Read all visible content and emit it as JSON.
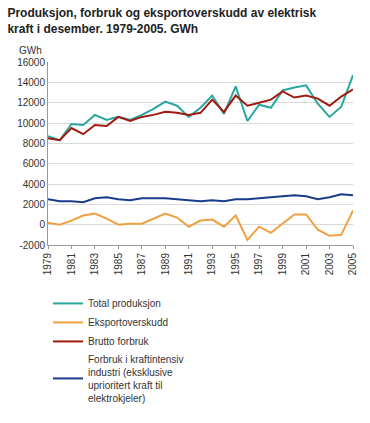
{
  "chart_data": {
    "type": "line",
    "title": "Produksjon, forbruk og eksportoverskudd av elektrisk kraft i desember. 1979-2005. GWh",
    "y_label": "GWh",
    "x": [
      1979,
      1980,
      1981,
      1982,
      1983,
      1984,
      1985,
      1986,
      1987,
      1988,
      1989,
      1990,
      1991,
      1992,
      1993,
      1994,
      1995,
      1996,
      1997,
      1998,
      1999,
      2000,
      2001,
      2002,
      2003,
      2004,
      2005
    ],
    "series": [
      {
        "name": "Total produksjon",
        "color": "#2aa6a0",
        "values": [
          8700,
          8300,
          9900,
          9800,
          10800,
          10300,
          10600,
          10300,
          10800,
          11400,
          12100,
          11700,
          10600,
          11500,
          12700,
          10900,
          13600,
          10200,
          11800,
          11500,
          13200,
          13500,
          13700,
          11900,
          10600,
          11600,
          14700
        ]
      },
      {
        "name": "Eksportoverskudd",
        "color": "#f0a040",
        "values": [
          200,
          0,
          400,
          900,
          1100,
          600,
          0,
          100,
          100,
          600,
          1100,
          700,
          -200,
          400,
          500,
          -200,
          900,
          -1500,
          -200,
          -800,
          100,
          1000,
          1000,
          -500,
          -1100,
          -1000,
          1400
        ]
      },
      {
        "name": "Brutto forbruk",
        "color": "#a01a10",
        "values": [
          8500,
          8300,
          9500,
          8900,
          9800,
          9700,
          10600,
          10200,
          10600,
          10800,
          11100,
          11000,
          10800,
          11000,
          12300,
          11100,
          12700,
          11700,
          12000,
          12300,
          13100,
          12500,
          12700,
          12400,
          11700,
          12600,
          13300
        ]
      },
      {
        "name": "Forbruk i kraftintensiv industri (eksklusive uprioritert kraft til elektrokjeler)",
        "color": "#1a3c8c",
        "values": [
          2500,
          2300,
          2300,
          2200,
          2600,
          2700,
          2500,
          2400,
          2600,
          2600,
          2600,
          2500,
          2400,
          2300,
          2400,
          2300,
          2500,
          2500,
          2600,
          2700,
          2800,
          2900,
          2800,
          2500,
          2700,
          3000,
          2900
        ]
      }
    ],
    "xlim": [
      1979,
      2005
    ],
    "xticks": [
      1979,
      1981,
      1983,
      1985,
      1987,
      1989,
      1991,
      1993,
      1995,
      1997,
      1999,
      2001,
      2003,
      2005
    ],
    "ylim": [
      -2000,
      16000
    ],
    "yticks": [
      -2000,
      0,
      2000,
      4000,
      6000,
      8000,
      10000,
      12000,
      14000,
      16000
    ],
    "grid": true,
    "legend": "bottom"
  }
}
